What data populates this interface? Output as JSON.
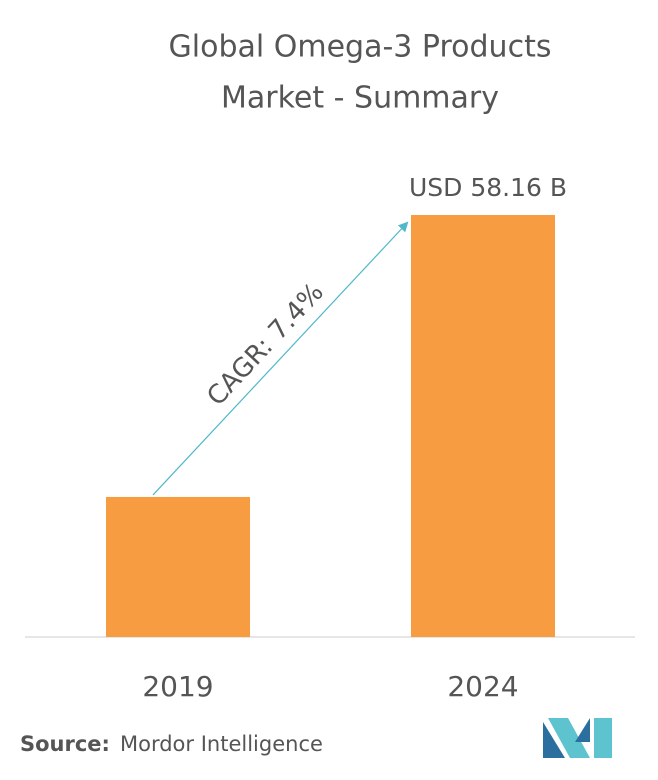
{
  "chart_data": {
    "type": "bar",
    "title": "Global Omega-3 Products",
    "subtitle": "Market - Summary",
    "categories": [
      "2019",
      "2024"
    ],
    "values": [
      19.3,
      58.16
    ],
    "value_labels": [
      null,
      "USD 58.16 B"
    ],
    "color": "#f89c42",
    "annotation": "CAGR: 7.4%",
    "source_label": "Source:",
    "source": "Mordor Intelligence"
  }
}
